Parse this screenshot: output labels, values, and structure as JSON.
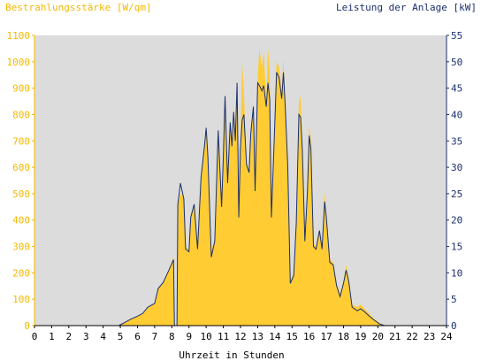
{
  "chart_data": {
    "type": "area",
    "left_axis_title": "Bestrahlungsstärke [W/qm]",
    "right_axis_title": "Leistung der Anlage [kW]",
    "xlabel": "Uhrzeit in Stunden",
    "x_range": [
      0,
      24
    ],
    "x_ticks": [
      "0",
      "1",
      "2",
      "3",
      "4",
      "5",
      "6",
      "7",
      "8",
      "9",
      "10",
      "11",
      "12",
      "13",
      "14",
      "15",
      "16",
      "17",
      "18",
      "19",
      "20",
      "21",
      "22",
      "23",
      "24"
    ],
    "left_ylim": [
      0,
      1100
    ],
    "left_ticks": [
      "0",
      "100",
      "200",
      "300",
      "400",
      "500",
      "600",
      "700",
      "800",
      "900",
      "1000",
      "1100"
    ],
    "right_ylim": [
      0,
      55
    ],
    "right_ticks": [
      "0",
      "5",
      "10",
      "15",
      "20",
      "25",
      "30",
      "35",
      "40",
      "45",
      "50",
      "55"
    ],
    "grid": false,
    "colors": {
      "irradiance": "#ffcc33",
      "power": "#1a2f6e",
      "plot_background": "#dcdcdc",
      "left_axis": "#f5b800",
      "right_axis": "#1a2f6e",
      "bottom_axis": "#000000"
    },
    "series": [
      {
        "axis": "left",
        "style": "filled-area",
        "points": [
          [
            0,
            0
          ],
          [
            4.9,
            0
          ],
          [
            5.2,
            10
          ],
          [
            5.6,
            25
          ],
          [
            6.0,
            35
          ],
          [
            6.3,
            45
          ],
          [
            6.6,
            70
          ],
          [
            7.0,
            85
          ],
          [
            7.2,
            140
          ],
          [
            7.5,
            165
          ],
          [
            7.8,
            210
          ],
          [
            8.1,
            260
          ],
          [
            8.15,
            0
          ],
          [
            8.3,
            0
          ],
          [
            8.35,
            460
          ],
          [
            8.5,
            500
          ],
          [
            8.7,
            490
          ],
          [
            8.8,
            300
          ],
          [
            9.0,
            290
          ],
          [
            9.1,
            420
          ],
          [
            9.3,
            460
          ],
          [
            9.5,
            300
          ],
          [
            9.7,
            570
          ],
          [
            9.9,
            690
          ],
          [
            10.0,
            740
          ],
          [
            10.1,
            640
          ],
          [
            10.3,
            280
          ],
          [
            10.5,
            330
          ],
          [
            10.7,
            750
          ],
          [
            10.9,
            460
          ],
          [
            11.0,
            640
          ],
          [
            11.1,
            880
          ],
          [
            11.25,
            550
          ],
          [
            11.4,
            780
          ],
          [
            11.5,
            690
          ],
          [
            11.6,
            820
          ],
          [
            11.7,
            710
          ],
          [
            11.8,
            920
          ],
          [
            11.9,
            420
          ],
          [
            12.0,
            700
          ],
          [
            12.1,
            1000
          ],
          [
            12.2,
            880
          ],
          [
            12.35,
            620
          ],
          [
            12.5,
            590
          ],
          [
            12.6,
            740
          ],
          [
            12.75,
            840
          ],
          [
            12.85,
            520
          ],
          [
            13.0,
            940
          ],
          [
            13.1,
            1050
          ],
          [
            13.25,
            980
          ],
          [
            13.35,
            1040
          ],
          [
            13.5,
            850
          ],
          [
            13.6,
            1050
          ],
          [
            13.7,
            970
          ],
          [
            13.8,
            420
          ],
          [
            14.0,
            780
          ],
          [
            14.1,
            1000
          ],
          [
            14.25,
            980
          ],
          [
            14.4,
            880
          ],
          [
            14.5,
            1010
          ],
          [
            14.6,
            860
          ],
          [
            14.75,
            620
          ],
          [
            14.9,
            170
          ],
          [
            15.1,
            200
          ],
          [
            15.25,
            400
          ],
          [
            15.4,
            850
          ],
          [
            15.5,
            870
          ],
          [
            15.6,
            690
          ],
          [
            15.75,
            330
          ],
          [
            15.9,
            520
          ],
          [
            16.0,
            760
          ],
          [
            16.1,
            700
          ],
          [
            16.25,
            310
          ],
          [
            16.4,
            300
          ],
          [
            16.6,
            370
          ],
          [
            16.75,
            300
          ],
          [
            16.9,
            510
          ],
          [
            17.0,
            420
          ],
          [
            17.2,
            250
          ],
          [
            17.4,
            240
          ],
          [
            17.6,
            160
          ],
          [
            17.8,
            120
          ],
          [
            18.0,
            170
          ],
          [
            18.15,
            230
          ],
          [
            18.3,
            180
          ],
          [
            18.5,
            80
          ],
          [
            18.8,
            70
          ],
          [
            19.0,
            80
          ],
          [
            19.2,
            65
          ],
          [
            19.5,
            45
          ],
          [
            19.8,
            25
          ],
          [
            20.1,
            10
          ],
          [
            20.4,
            0
          ],
          [
            24,
            0
          ]
        ]
      },
      {
        "axis": "right",
        "style": "line",
        "points": [
          [
            0,
            0
          ],
          [
            4.9,
            0
          ],
          [
            5.2,
            0.5
          ],
          [
            5.6,
            1.2
          ],
          [
            6.0,
            1.8
          ],
          [
            6.3,
            2.3
          ],
          [
            6.6,
            3.5
          ],
          [
            7.0,
            4.2
          ],
          [
            7.2,
            7.0
          ],
          [
            7.5,
            8.2
          ],
          [
            7.8,
            10.3
          ],
          [
            8.1,
            12.5
          ],
          [
            8.15,
            0
          ],
          [
            8.3,
            0
          ],
          [
            8.35,
            23.0
          ],
          [
            8.5,
            27.0
          ],
          [
            8.7,
            24.0
          ],
          [
            8.8,
            14.5
          ],
          [
            9.0,
            14.0
          ],
          [
            9.1,
            20.5
          ],
          [
            9.3,
            23.0
          ],
          [
            9.5,
            14.5
          ],
          [
            9.7,
            28.0
          ],
          [
            9.9,
            34.0
          ],
          [
            10.0,
            37.5
          ],
          [
            10.1,
            32.0
          ],
          [
            10.3,
            13.0
          ],
          [
            10.5,
            16.0
          ],
          [
            10.7,
            37.0
          ],
          [
            10.9,
            22.5
          ],
          [
            11.0,
            32.0
          ],
          [
            11.1,
            43.5
          ],
          [
            11.25,
            27.0
          ],
          [
            11.4,
            38.5
          ],
          [
            11.5,
            34.0
          ],
          [
            11.6,
            40.5
          ],
          [
            11.7,
            35.0
          ],
          [
            11.8,
            46.0
          ],
          [
            11.9,
            20.5
          ],
          [
            12.0,
            34.0
          ],
          [
            12.1,
            39.0
          ],
          [
            12.2,
            40.0
          ],
          [
            12.35,
            30.5
          ],
          [
            12.5,
            29.0
          ],
          [
            12.6,
            36.5
          ],
          [
            12.75,
            41.5
          ],
          [
            12.85,
            25.5
          ],
          [
            13.0,
            46.0
          ],
          [
            13.1,
            45.5
          ],
          [
            13.25,
            44.5
          ],
          [
            13.35,
            45.5
          ],
          [
            13.5,
            41.5
          ],
          [
            13.6,
            46.0
          ],
          [
            13.7,
            43.0
          ],
          [
            13.8,
            20.5
          ],
          [
            14.0,
            38.5
          ],
          [
            14.1,
            48.0
          ],
          [
            14.25,
            47.0
          ],
          [
            14.4,
            43.0
          ],
          [
            14.5,
            48.0
          ],
          [
            14.6,
            42.0
          ],
          [
            14.75,
            30.5
          ],
          [
            14.9,
            8.0
          ],
          [
            15.1,
            9.5
          ],
          [
            15.25,
            19.5
          ],
          [
            15.4,
            40.0
          ],
          [
            15.5,
            39.5
          ],
          [
            15.6,
            33.5
          ],
          [
            15.75,
            16.0
          ],
          [
            15.9,
            25.5
          ],
          [
            16.0,
            36.0
          ],
          [
            16.1,
            33.5
          ],
          [
            16.25,
            15.0
          ],
          [
            16.4,
            14.5
          ],
          [
            16.6,
            18.0
          ],
          [
            16.75,
            14.5
          ],
          [
            16.9,
            23.5
          ],
          [
            17.0,
            20.5
          ],
          [
            17.2,
            12.0
          ],
          [
            17.4,
            11.5
          ],
          [
            17.6,
            7.5
          ],
          [
            17.8,
            5.5
          ],
          [
            18.0,
            8.0
          ],
          [
            18.15,
            10.5
          ],
          [
            18.3,
            8.5
          ],
          [
            18.5,
            3.5
          ],
          [
            18.8,
            2.8
          ],
          [
            19.0,
            3.2
          ],
          [
            19.2,
            2.7
          ],
          [
            19.5,
            1.8
          ],
          [
            19.8,
            1.0
          ],
          [
            20.1,
            0.3
          ],
          [
            20.4,
            0
          ],
          [
            24,
            0
          ]
        ]
      }
    ]
  }
}
